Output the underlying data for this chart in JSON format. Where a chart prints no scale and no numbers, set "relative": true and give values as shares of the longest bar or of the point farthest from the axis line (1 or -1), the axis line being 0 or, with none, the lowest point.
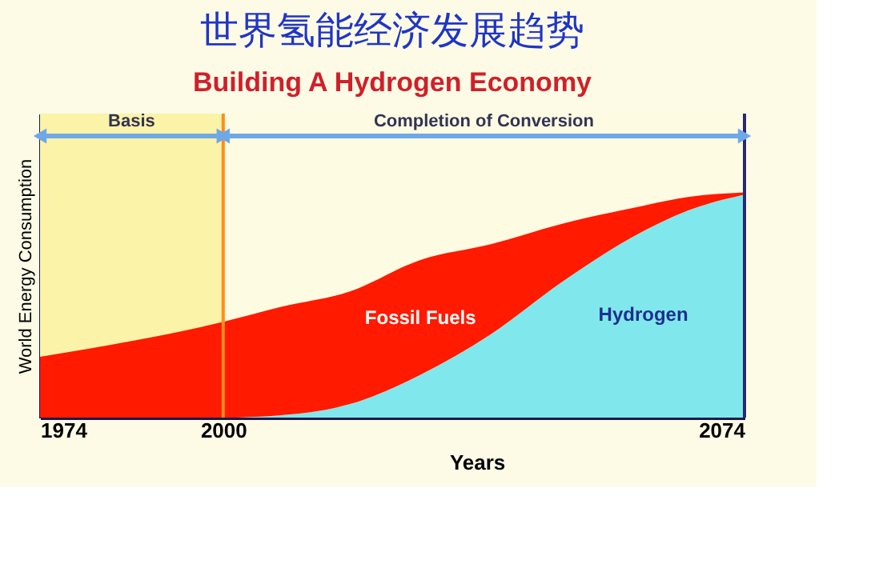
{
  "chart_data": {
    "type": "area",
    "title": "世界氢能经济发展趋势",
    "subtitle": "Building A Hydrogen Economy",
    "xlabel": "Years",
    "ylabel": "World Energy Consumption",
    "relative": true,
    "stacked": true,
    "grid": false,
    "x": [
      1974,
      1987,
      2000,
      2008,
      2018,
      2028,
      2038,
      2048,
      2058,
      2066,
      2074
    ],
    "xlim": [
      1974,
      2074
    ],
    "xticks": [
      1974,
      2000,
      2074
    ],
    "series": [
      {
        "name": "Hydrogen",
        "color": "#80e8ec",
        "values": [
          0,
          0,
          0,
          0.01,
          0.06,
          0.19,
          0.37,
          0.6,
          0.8,
          0.92,
          0.99
        ]
      },
      {
        "name": "Fossil Fuels",
        "color": "#ff1a00",
        "values": [
          0.27,
          0.34,
          0.425,
          0.48,
          0.5,
          0.51,
          0.4,
          0.26,
          0.13,
          0.06,
          0.01
        ]
      }
    ],
    "ref_lines": [
      {
        "axis": "x",
        "value": 2000,
        "color": "#ff8c1a"
      },
      {
        "axis": "x",
        "value": 2074,
        "color": "#2a2a6e"
      }
    ],
    "bands": [
      {
        "axis": "x",
        "from": 1974,
        "to": 2000,
        "label": "Basis",
        "color": "#fbf3a8"
      },
      {
        "axis": "x",
        "from": 2000,
        "to": 2074,
        "label": "Completion of Conversion",
        "color": "#fdfbe2"
      }
    ]
  }
}
